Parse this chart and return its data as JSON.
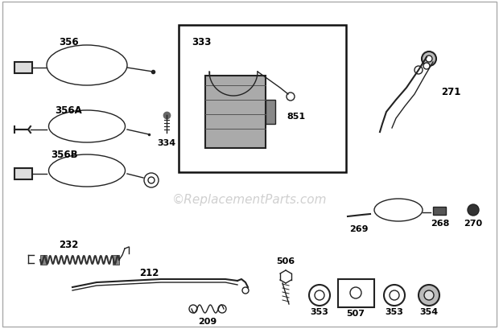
{
  "bg_color": "#ffffff",
  "line_color": "#444444",
  "label_color": "#000000",
  "watermark_text": "©ReplacementParts.com",
  "watermark_color": "#c8c8c8",
  "watermark_fontsize": 11,
  "figsize": [
    6.2,
    4.1
  ],
  "dpi": 100
}
